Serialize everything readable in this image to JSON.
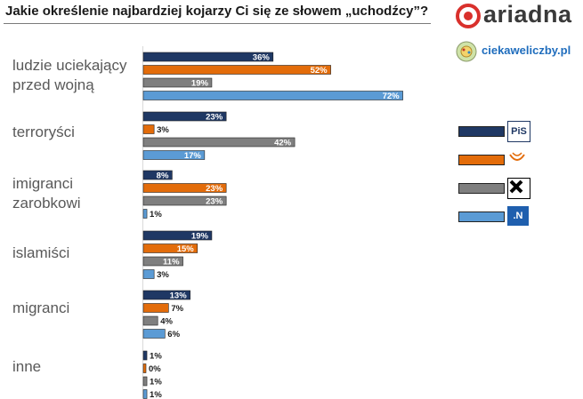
{
  "title": "Jakie określenie najbardziej kojarzy Ci się ze słowem „uchodźcy”?",
  "logos": {
    "ariadna": "ariadna",
    "ciekawe": "ciekaweliczby.pl"
  },
  "legend": [
    {
      "color": "#1f3864",
      "icon": "pis-logo",
      "text": "PiS"
    },
    {
      "color": "#e36c0a",
      "icon": "po-logo",
      "text": ""
    },
    {
      "color": "#7f7f7f",
      "icon": "kukiz-logo",
      "text": ""
    },
    {
      "color": "#5b9bd5",
      "icon": "nowoczesna-logo",
      "text": ".N"
    }
  ],
  "chart_data": {
    "type": "bar",
    "orientation": "horizontal",
    "title": "Jakie określenie najbardziej kojarzy Ci się ze słowem „uchodźcy”?",
    "xlabel": "",
    "ylabel": "",
    "grid": false,
    "legend_position": "right",
    "categories": [
      [
        "ludzie uciekający",
        "przed wojną"
      ],
      [
        "terroryści"
      ],
      [
        "imigranci",
        "zarobkowi"
      ],
      [
        "islamiści"
      ],
      [
        "migranci"
      ],
      [
        "inne"
      ]
    ],
    "series": [
      {
        "color": "#1f3864",
        "values": [
          36,
          23,
          8,
          19,
          13,
          1
        ]
      },
      {
        "color": "#e36c0a",
        "values": [
          52,
          3,
          23,
          15,
          7,
          0
        ]
      },
      {
        "color": "#7f7f7f",
        "values": [
          19,
          42,
          23,
          11,
          4,
          1
        ]
      },
      {
        "color": "#5b9bd5",
        "values": [
          72,
          17,
          1,
          3,
          6,
          1
        ]
      }
    ],
    "value_suffix": "%"
  }
}
